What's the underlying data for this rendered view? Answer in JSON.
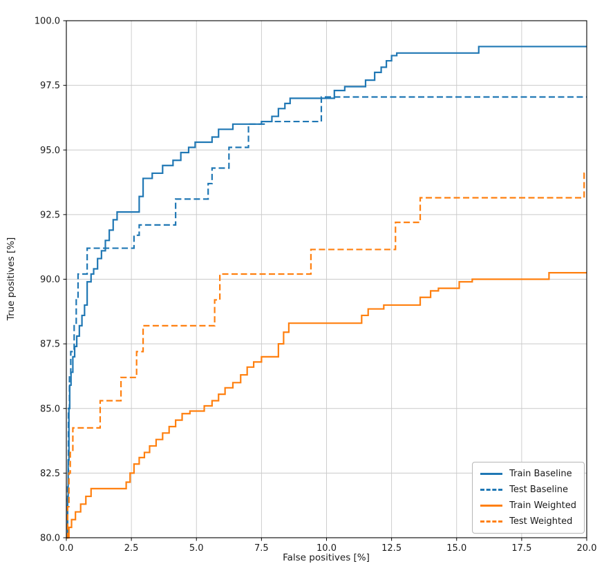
{
  "chart_data": {
    "type": "line",
    "step": "post",
    "title": "",
    "xlabel": "False positives [%]",
    "ylabel": "True positives [%]",
    "xlim": [
      0,
      20
    ],
    "ylim": [
      80,
      100
    ],
    "grid": true,
    "legend_position": "lower right",
    "xticks": [
      0,
      2.5,
      5,
      7.5,
      10,
      12.5,
      15,
      17.5,
      20
    ],
    "xtick_labels": [
      "0.0",
      "2.5",
      "5.0",
      "7.5",
      "10.0",
      "12.5",
      "15.0",
      "17.5",
      "20.0"
    ],
    "yticks": [
      80,
      82.5,
      85,
      87.5,
      90,
      92.5,
      95,
      97.5,
      100
    ],
    "ytick_labels": [
      "80.0",
      "82.5",
      "85.0",
      "87.5",
      "90.0",
      "92.5",
      "95.0",
      "97.5",
      "100.0"
    ],
    "grid_color": "#c9c9c9",
    "series": [
      {
        "name": "Train Baseline",
        "color": "#1f77b4",
        "dash": "solid",
        "points": [
          [
            0,
            80
          ],
          [
            0.05,
            81.5
          ],
          [
            0.07,
            83.0
          ],
          [
            0.1,
            85.0
          ],
          [
            0.13,
            85.9
          ],
          [
            0.18,
            86.4
          ],
          [
            0.25,
            87.0
          ],
          [
            0.32,
            87.4
          ],
          [
            0.4,
            87.8
          ],
          [
            0.5,
            88.2
          ],
          [
            0.6,
            88.6
          ],
          [
            0.7,
            89.0
          ],
          [
            0.8,
            89.9
          ],
          [
            0.95,
            90.2
          ],
          [
            1.05,
            90.4
          ],
          [
            1.2,
            90.8
          ],
          [
            1.35,
            91.1
          ],
          [
            1.5,
            91.5
          ],
          [
            1.65,
            91.9
          ],
          [
            1.8,
            92.3
          ],
          [
            1.95,
            92.6
          ],
          [
            2.8,
            93.2
          ],
          [
            2.95,
            93.9
          ],
          [
            3.3,
            94.1
          ],
          [
            3.7,
            94.4
          ],
          [
            4.1,
            94.6
          ],
          [
            4.4,
            94.9
          ],
          [
            4.7,
            95.1
          ],
          [
            4.95,
            95.3
          ],
          [
            5.6,
            95.5
          ],
          [
            5.85,
            95.8
          ],
          [
            6.4,
            96.0
          ],
          [
            7.5,
            96.1
          ],
          [
            7.9,
            96.3
          ],
          [
            8.15,
            96.6
          ],
          [
            8.4,
            96.8
          ],
          [
            8.6,
            97.0
          ],
          [
            10.3,
            97.3
          ],
          [
            10.7,
            97.45
          ],
          [
            11.5,
            97.7
          ],
          [
            11.85,
            98.0
          ],
          [
            12.1,
            98.2
          ],
          [
            12.3,
            98.45
          ],
          [
            12.5,
            98.65
          ],
          [
            12.7,
            98.75
          ],
          [
            15.85,
            99.0
          ],
          [
            20,
            99.0
          ]
        ]
      },
      {
        "name": "Test Baseline",
        "color": "#1f77b4",
        "dash": "dashed",
        "points": [
          [
            0,
            80
          ],
          [
            0.05,
            82.0
          ],
          [
            0.08,
            85.0
          ],
          [
            0.12,
            86.3
          ],
          [
            0.17,
            87.2
          ],
          [
            0.3,
            88.3
          ],
          [
            0.38,
            89.2
          ],
          [
            0.45,
            90.2
          ],
          [
            0.8,
            91.2
          ],
          [
            2.6,
            91.7
          ],
          [
            2.8,
            92.1
          ],
          [
            4.2,
            93.1
          ],
          [
            5.45,
            93.7
          ],
          [
            5.6,
            94.3
          ],
          [
            6.25,
            95.1
          ],
          [
            7.0,
            96.0
          ],
          [
            7.6,
            96.1
          ],
          [
            9.8,
            97.05
          ],
          [
            20,
            97.05
          ]
        ]
      },
      {
        "name": "Train Weighted",
        "color": "#ff7f0e",
        "dash": "solid",
        "points": [
          [
            0,
            80
          ],
          [
            0.1,
            80.4
          ],
          [
            0.2,
            80.7
          ],
          [
            0.35,
            81.0
          ],
          [
            0.55,
            81.3
          ],
          [
            0.75,
            81.6
          ],
          [
            0.95,
            81.9
          ],
          [
            2.3,
            82.15
          ],
          [
            2.45,
            82.5
          ],
          [
            2.6,
            82.85
          ],
          [
            2.8,
            83.1
          ],
          [
            3.0,
            83.3
          ],
          [
            3.2,
            83.55
          ],
          [
            3.45,
            83.8
          ],
          [
            3.7,
            84.05
          ],
          [
            3.95,
            84.3
          ],
          [
            4.2,
            84.55
          ],
          [
            4.45,
            84.8
          ],
          [
            4.75,
            84.9
          ],
          [
            5.3,
            85.1
          ],
          [
            5.6,
            85.3
          ],
          [
            5.85,
            85.55
          ],
          [
            6.1,
            85.8
          ],
          [
            6.4,
            86.0
          ],
          [
            6.7,
            86.3
          ],
          [
            6.95,
            86.6
          ],
          [
            7.2,
            86.8
          ],
          [
            7.5,
            87.0
          ],
          [
            8.15,
            87.5
          ],
          [
            8.35,
            87.95
          ],
          [
            8.55,
            88.3
          ],
          [
            11.35,
            88.6
          ],
          [
            11.6,
            88.85
          ],
          [
            12.2,
            89.0
          ],
          [
            13.6,
            89.3
          ],
          [
            14.0,
            89.55
          ],
          [
            14.3,
            89.65
          ],
          [
            15.1,
            89.9
          ],
          [
            15.6,
            90.0
          ],
          [
            18.55,
            90.25
          ],
          [
            20,
            90.25
          ]
        ]
      },
      {
        "name": "Test Weighted",
        "color": "#ff7f0e",
        "dash": "dashed",
        "points": [
          [
            0,
            80
          ],
          [
            0.05,
            81.2
          ],
          [
            0.1,
            82.5
          ],
          [
            0.15,
            83.3
          ],
          [
            0.25,
            84.25
          ],
          [
            1.3,
            85.3
          ],
          [
            2.1,
            86.2
          ],
          [
            2.7,
            87.2
          ],
          [
            2.95,
            88.2
          ],
          [
            5.7,
            89.2
          ],
          [
            5.9,
            90.2
          ],
          [
            9.4,
            91.15
          ],
          [
            12.65,
            92.2
          ],
          [
            13.6,
            93.15
          ],
          [
            19.9,
            94.1
          ],
          [
            20,
            94.1
          ]
        ]
      }
    ]
  },
  "legend": {
    "items": [
      "Train Baseline",
      "Test Baseline",
      "Train Weighted",
      "Test Weighted"
    ]
  }
}
